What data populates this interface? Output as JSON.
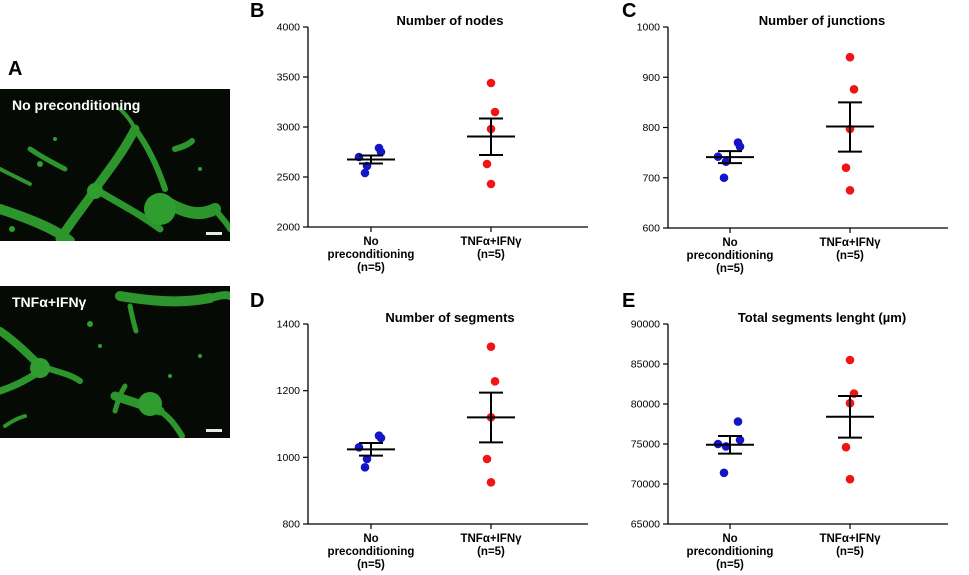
{
  "panels": {
    "A": {
      "letter": "A",
      "images": [
        {
          "label": "No preconditioning"
        },
        {
          "label": "TNFα+IFNγ"
        }
      ]
    },
    "B": {
      "letter": "B"
    },
    "C": {
      "letter": "C"
    },
    "D": {
      "letter": "D"
    },
    "E": {
      "letter": "E"
    }
  },
  "colors": {
    "group1": "#1515c8",
    "group2": "#f01414",
    "micro_bg": "#050a05",
    "micro_green": "#2f9e2f"
  },
  "chart_data": [
    {
      "id": "B",
      "type": "scatter",
      "title": "Number of nodes",
      "ylim": [
        2000,
        4000
      ],
      "yticks": [
        2000,
        2500,
        3000,
        3500,
        4000
      ],
      "tick_labels": [
        "2000",
        "2500",
        "3000",
        "3500",
        "4000"
      ],
      "categories": [
        [
          "No",
          "preconditioning",
          "(n=5)"
        ],
        [
          "TNFα+IFNγ",
          "(n=5)"
        ]
      ],
      "series": [
        {
          "name": "No preconditioning",
          "color": "#1515c8",
          "values": [
            2790,
            2750,
            2700,
            2610,
            2540
          ],
          "mean": 2675,
          "sem_low": 2635,
          "sem_high": 2715
        },
        {
          "name": "TNFα+IFNγ",
          "color": "#f01414",
          "values": [
            3440,
            3150,
            2980,
            2630,
            2430
          ],
          "mean": 2905,
          "sem_low": 2720,
          "sem_high": 3085
        }
      ]
    },
    {
      "id": "C",
      "type": "scatter",
      "title": "Number of junctions",
      "ylim": [
        600,
        1000
      ],
      "yticks": [
        600,
        700,
        800,
        900,
        1000
      ],
      "tick_labels": [
        "600",
        "700",
        "800",
        "900",
        "1000"
      ],
      "categories": [
        [
          "No",
          "preconditioning",
          "(n=5)"
        ],
        [
          "TNFα+IFNγ",
          "(n=5)"
        ]
      ],
      "series": [
        {
          "name": "No preconditioning",
          "color": "#1515c8",
          "values": [
            770,
            762,
            742,
            732,
            700
          ],
          "mean": 741,
          "sem_low": 729,
          "sem_high": 753
        },
        {
          "name": "TNFα+IFNγ",
          "color": "#f01414",
          "values": [
            940,
            876,
            797,
            720,
            675
          ],
          "mean": 802,
          "sem_low": 752,
          "sem_high": 850
        }
      ]
    },
    {
      "id": "D",
      "type": "scatter",
      "title": "Number of segments",
      "ylim": [
        800,
        1400
      ],
      "yticks": [
        800,
        1000,
        1200,
        1400
      ],
      "tick_labels": [
        "800",
        "1000",
        "1200",
        "1400"
      ],
      "categories": [
        [
          "No",
          "preconditioning",
          "(n=5)"
        ],
        [
          "TNFα+IFNγ",
          "(n=5)"
        ]
      ],
      "series": [
        {
          "name": "No preconditioning",
          "color": "#1515c8",
          "values": [
            1065,
            1058,
            1030,
            995,
            970
          ],
          "mean": 1024,
          "sem_low": 1005,
          "sem_high": 1043
        },
        {
          "name": "TNFα+IFNγ",
          "color": "#f01414",
          "values": [
            1332,
            1228,
            1120,
            995,
            925
          ],
          "mean": 1120,
          "sem_low": 1045,
          "sem_high": 1194
        }
      ]
    },
    {
      "id": "E",
      "type": "scatter",
      "title": "Total segments lenght (µm)",
      "ylim": [
        65000,
        90000
      ],
      "yticks": [
        65000,
        70000,
        75000,
        80000,
        85000,
        90000
      ],
      "tick_labels": [
        "65000",
        "70000",
        "75000",
        "80000",
        "85000",
        "90000"
      ],
      "categories": [
        [
          "No",
          "preconditioning",
          "(n=5)"
        ],
        [
          "TNFα+IFNγ",
          "(n=5)"
        ]
      ],
      "series": [
        {
          "name": "No preconditioning",
          "color": "#1515c8",
          "values": [
            77800,
            75500,
            75000,
            74700,
            71400
          ],
          "mean": 74900,
          "sem_low": 73800,
          "sem_high": 76000
        },
        {
          "name": "TNFα+IFNγ",
          "color": "#f01414",
          "values": [
            85500,
            81300,
            80100,
            74600,
            70600
          ],
          "mean": 78400,
          "sem_low": 75800,
          "sem_high": 81000
        }
      ]
    }
  ]
}
